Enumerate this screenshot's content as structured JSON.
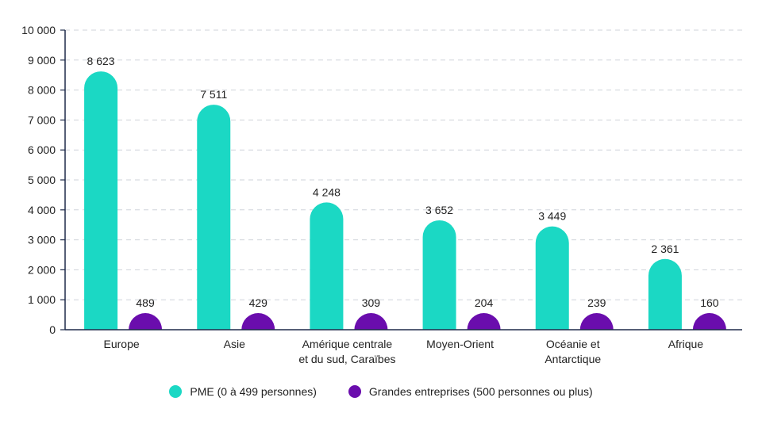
{
  "chart_data": {
    "type": "bar",
    "categories": [
      [
        "Europe"
      ],
      [
        "Asie"
      ],
      [
        "Amérique centrale",
        "et du sud, Caraïbes"
      ],
      [
        "Moyen-Orient"
      ],
      [
        "Océanie et",
        "Antarctique"
      ],
      [
        "Afrique"
      ]
    ],
    "series": [
      {
        "name": "PME (0 à 499 personnes)",
        "values": [
          8623,
          7511,
          4248,
          3652,
          3449,
          2361
        ],
        "labels": [
          "8 623",
          "7 511",
          "4 248",
          "3 652",
          "3 449",
          "2 361"
        ],
        "color": "#1bd8c4"
      },
      {
        "name": "Grandes entreprises (500 personnes ou plus)",
        "values": [
          489,
          429,
          309,
          204,
          239,
          160
        ],
        "labels": [
          "489",
          "429",
          "309",
          "204",
          "239",
          "160"
        ],
        "color": "#6a0dad"
      }
    ],
    "ylim": [
      0,
      10000
    ],
    "yticks": [
      0,
      1000,
      2000,
      3000,
      4000,
      5000,
      6000,
      7000,
      8000,
      9000,
      10000
    ],
    "ytick_labels": [
      "0",
      "1 000",
      "2 000",
      "3 000",
      "4 000",
      "5 000",
      "6 000",
      "7 000",
      "8 000",
      "9 000",
      "10 000"
    ],
    "title": "",
    "xlabel": "",
    "ylabel": "",
    "grid": true,
    "legend_position": "bottom"
  }
}
